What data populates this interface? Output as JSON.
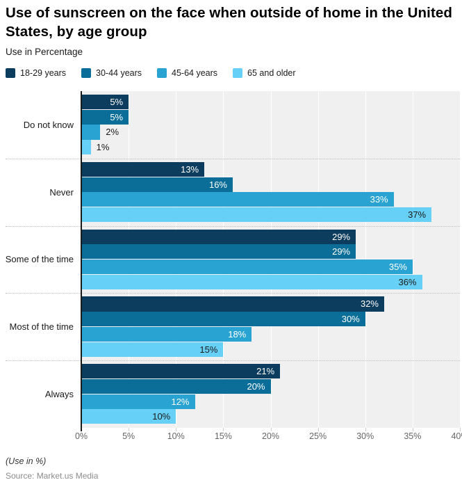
{
  "header": {
    "title": "Use of sunscreen on the face when outside of home in the United States, by age group",
    "subtitle": "Use in Percentage"
  },
  "chart_data": {
    "type": "bar",
    "orientation": "horizontal",
    "title": "Use of sunscreen on the face when outside of home in the United States, by age group",
    "subtitle": "Use in Percentage",
    "categories": [
      "Do not know",
      "Never",
      "Some of the time",
      "Most of the time",
      "Always"
    ],
    "series": [
      {
        "name": "18-29 years",
        "color": "#0d3d5e",
        "label_color": "#ffffff",
        "values": [
          5,
          13,
          29,
          32,
          21
        ]
      },
      {
        "name": "30-44 years",
        "color": "#0a6e99",
        "label_color": "#ffffff",
        "values": [
          5,
          16,
          29,
          30,
          20
        ]
      },
      {
        "name": "45-64 years",
        "color": "#29a3d1",
        "label_color": "#ffffff",
        "values": [
          2,
          33,
          35,
          18,
          12
        ]
      },
      {
        "name": "65 and older",
        "color": "#67d0f6",
        "label_color": "#1a1a1a",
        "values": [
          1,
          37,
          36,
          15,
          10
        ]
      }
    ],
    "value_suffix": "%",
    "xlim": [
      0,
      40
    ],
    "xticks": [
      "0%",
      "5%",
      "10%",
      "15%",
      "20%",
      "25%",
      "30%",
      "35%",
      "40%"
    ],
    "grid": "vertical-white-on-gray",
    "legend_position": "top",
    "colors": {
      "plot_background": "#f0f0f0",
      "gridline": "#ffffff",
      "separator": "#bdbdbd",
      "axis": "#1a1a1a",
      "tick_text": "#666666",
      "outside_label_text": "#1a1a1a"
    }
  },
  "footer": {
    "note": "(Use in %)",
    "source": "Source: Market.us Media"
  }
}
